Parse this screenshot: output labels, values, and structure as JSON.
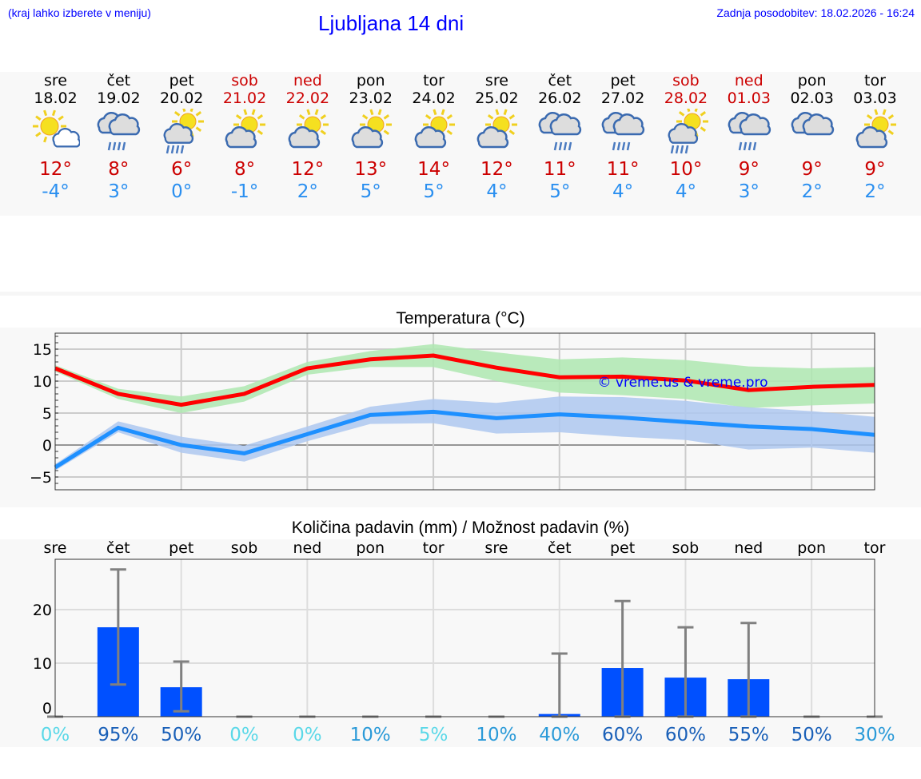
{
  "header": {
    "hint": "(kraj lahko izberete v meniju)",
    "title": "Ljubljana 14 dni",
    "updated": "Zadnja posodobitev: 18.02.2026 - 16:24"
  },
  "days": [
    {
      "name": "sre",
      "date": "18.02",
      "weekend": false,
      "icon": "sun-small-cloud-icon",
      "max": "12°",
      "min": "-4°"
    },
    {
      "name": "čet",
      "date": "19.02",
      "weekend": false,
      "icon": "cloud-rain-icon",
      "max": "8°",
      "min": "3°"
    },
    {
      "name": "pet",
      "date": "20.02",
      "weekend": false,
      "icon": "sun-cloud-rain-icon",
      "max": "6°",
      "min": "0°"
    },
    {
      "name": "sob",
      "date": "21.02",
      "weekend": true,
      "icon": "partly-cloudy-icon",
      "max": "8°",
      "min": "-1°"
    },
    {
      "name": "ned",
      "date": "22.02",
      "weekend": true,
      "icon": "partly-cloudy-icon",
      "max": "12°",
      "min": "2°"
    },
    {
      "name": "pon",
      "date": "23.02",
      "weekend": false,
      "icon": "partly-cloudy-icon",
      "max": "13°",
      "min": "5°"
    },
    {
      "name": "tor",
      "date": "24.02",
      "weekend": false,
      "icon": "partly-cloudy-icon",
      "max": "14°",
      "min": "5°"
    },
    {
      "name": "sre",
      "date": "25.02",
      "weekend": false,
      "icon": "partly-cloudy-icon",
      "max": "12°",
      "min": "4°"
    },
    {
      "name": "čet",
      "date": "26.02",
      "weekend": false,
      "icon": "cloud-light-rain-icon",
      "max": "11°",
      "min": "5°"
    },
    {
      "name": "pet",
      "date": "27.02",
      "weekend": false,
      "icon": "cloud-rain-icon",
      "max": "11°",
      "min": "4°"
    },
    {
      "name": "sob",
      "date": "28.02",
      "weekend": true,
      "icon": "sun-cloud-rain-icon",
      "max": "10°",
      "min": "4°"
    },
    {
      "name": "ned",
      "date": "01.03",
      "weekend": true,
      "icon": "cloud-rain-icon",
      "max": "9°",
      "min": "3°"
    },
    {
      "name": "pon",
      "date": "02.03",
      "weekend": false,
      "icon": "cloudy-icon",
      "max": "9°",
      "min": "2°"
    },
    {
      "name": "tor",
      "date": "03.03",
      "weekend": false,
      "icon": "partly-cloudy-icon",
      "max": "9°",
      "min": "2°"
    }
  ],
  "colors": {
    "max": "#ff0000",
    "min": "#1e90ff",
    "max_band": "#aee8b0",
    "min_band": "#aec8f0",
    "bar": "#0050ff",
    "error": "#808080",
    "pct_low": "#5ad8e8",
    "pct_mid": "#2a9ad8",
    "pct_high": "#1a60b8"
  },
  "chart_data": [
    {
      "type": "line",
      "title": "Temperatura (°C)",
      "ylim": [
        -7,
        17.5
      ],
      "yticks": [
        "−5",
        "0",
        "5",
        "10",
        "15"
      ],
      "ytick_values": [
        -5,
        0,
        5,
        10,
        15
      ],
      "grid": true,
      "watermark": "© vreme.us & vreme.pro",
      "series": [
        {
          "values": [
            12,
            8,
            6.3,
            8,
            12,
            13.4,
            14,
            12.1,
            10.6,
            10.7,
            10.1,
            8.6,
            9.1,
            9.4
          ],
          "band_low": [
            11.5,
            7.2,
            5,
            6.8,
            11,
            12.2,
            12.2,
            10,
            8.2,
            7.8,
            7.2,
            5.8,
            6.2,
            6.5
          ],
          "band_high": [
            12.5,
            8.8,
            7.6,
            9.2,
            13,
            14.7,
            15.8,
            14.5,
            13.4,
            13.7,
            13.3,
            12.3,
            12,
            12.2
          ]
        },
        {
          "values": [
            -3.5,
            2.7,
            0,
            -1.3,
            1.7,
            4.7,
            5.2,
            4.2,
            4.8,
            4.3,
            3.6,
            2.9,
            2.5,
            1.6
          ],
          "band_low": [
            -4,
            2,
            -1.2,
            -2.6,
            0.6,
            3.3,
            3.4,
            1.8,
            2,
            1.3,
            0.8,
            -0.7,
            -0.4,
            -1.2
          ],
          "band_high": [
            -3,
            3.7,
            1.3,
            -0.1,
            2.9,
            6,
            7.2,
            6.6,
            7.6,
            7.5,
            6.9,
            5.9,
            5.3,
            4.4
          ]
        }
      ]
    },
    {
      "type": "bar",
      "title": "Količina padavin (mm) / Možnost padavin (%)",
      "ylim": [
        -1.5,
        29.5
      ],
      "yticks": [
        "0",
        "10",
        "20"
      ],
      "ytick_values": [
        0,
        10,
        20
      ],
      "grid": true,
      "categories": [
        "sre",
        "čet",
        "pet",
        "sob",
        "ned",
        "pon",
        "tor",
        "sre",
        "čet",
        "pet",
        "sob",
        "ned",
        "pon",
        "tor"
      ],
      "values": [
        0,
        16.7,
        5.5,
        0,
        0,
        0,
        0,
        0,
        0.5,
        9.1,
        7.3,
        7,
        0,
        0
      ],
      "err_low": [
        0,
        6,
        1,
        0,
        0,
        0,
        0,
        0,
        0,
        0,
        0,
        0,
        0,
        0
      ],
      "err_high": [
        0,
        27.5,
        10.3,
        0,
        0,
        0,
        0,
        0,
        11.8,
        21.6,
        16.7,
        17.5,
        0,
        0
      ],
      "probability": [
        "0%",
        "95%",
        "50%",
        "0%",
        "0%",
        "10%",
        "5%",
        "10%",
        "40%",
        "60%",
        "60%",
        "55%",
        "50%",
        "30%"
      ],
      "probability_values": [
        0,
        95,
        50,
        0,
        0,
        10,
        5,
        10,
        40,
        60,
        60,
        55,
        50,
        30
      ]
    }
  ]
}
